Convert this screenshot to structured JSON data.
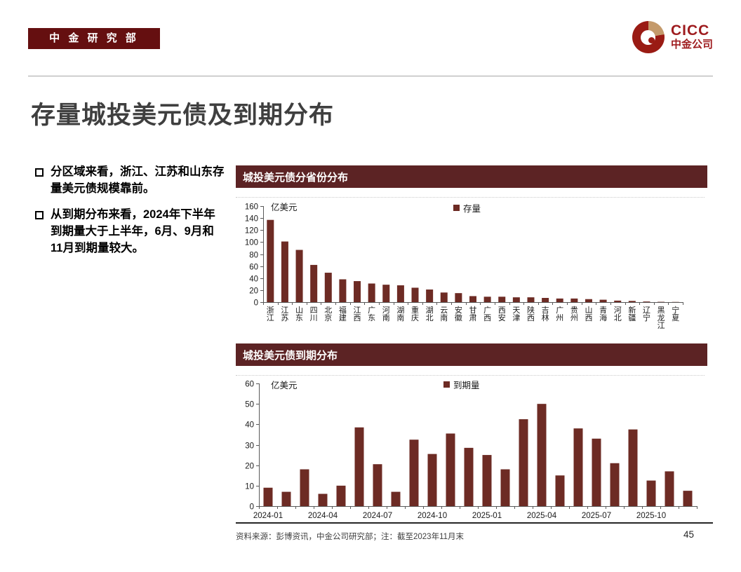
{
  "header": {
    "dept_badge": "中 金 研 究 部",
    "logo": {
      "text": "CICC",
      "subtext": "中金公司"
    }
  },
  "title": "存量城投美元债及到期分布",
  "bullets": [
    "分区域来看，浙江、江苏和山东存量美元债规模靠前。",
    "从到期分布来看，2024年下半年到期量大于上半年，6月、9月和11月到期量较大。"
  ],
  "footer": {
    "source": "资料来源：彭博资讯，中金公司研究部；注：截至2023年11月末",
    "page_number": "45"
  },
  "colors": {
    "brand_maroon_badge": "#650F10",
    "panel_header_maroon": "#5C2324",
    "bar_maroon": "#6D2B24",
    "logo_red": "#9E1B1E",
    "logo_gold": "#C49A6B",
    "title_gray": "#3F3F3F"
  },
  "chart_data": [
    {
      "type": "bar",
      "title": "城投美元债分省份分布",
      "unit_label": "亿美元",
      "legend": "存量",
      "legend_position": "top-right",
      "grid": false,
      "ylim": [
        0,
        160
      ],
      "yticks": [
        0,
        20,
        40,
        60,
        80,
        100,
        120,
        140,
        160
      ],
      "bar_color": "#6D2B24",
      "categories": [
        "浙江",
        "江苏",
        "山东",
        "四川",
        "北京",
        "福建",
        "江西",
        "广东",
        "河南",
        "湖南",
        "重庆",
        "湖北",
        "云南",
        "安徽",
        "甘肃",
        "广西",
        "西安",
        "天津",
        "陕西",
        "吉林",
        "广州",
        "贵州",
        "山西",
        "青海",
        "河北",
        "新疆",
        "辽宁",
        "黑龙江",
        "宁夏"
      ],
      "values": [
        137,
        101,
        87,
        62,
        49,
        38,
        35,
        31,
        29,
        28,
        24,
        21,
        16,
        15,
        10,
        9,
        9,
        8,
        8,
        7,
        6,
        6,
        5,
        4,
        2.5,
        2,
        1,
        0.5,
        0.3
      ]
    },
    {
      "type": "bar",
      "title": "城投美元债到期分布",
      "unit_label": "亿美元",
      "legend": "到期量",
      "legend_position": "top-right",
      "grid": false,
      "ylim": [
        0,
        60
      ],
      "yticks": [
        0,
        10,
        20,
        30,
        40,
        50,
        60
      ],
      "bar_color": "#6D2B24",
      "xtick_every": 3,
      "categories": [
        "2024-01",
        "2024-02",
        "2024-03",
        "2024-04",
        "2024-05",
        "2024-06",
        "2024-07",
        "2024-08",
        "2024-09",
        "2024-10",
        "2024-11",
        "2024-12",
        "2025-01",
        "2025-02",
        "2025-03",
        "2025-04",
        "2025-05",
        "2025-06",
        "2025-07",
        "2025-08",
        "2025-09",
        "2025-10",
        "2025-11",
        "2025-12"
      ],
      "values": [
        9,
        7,
        18,
        6,
        10,
        38.5,
        20.5,
        7,
        32.5,
        25.5,
        35.5,
        28.5,
        25,
        18,
        42.5,
        50,
        15,
        38,
        33,
        21,
        37.5,
        12.5,
        17,
        7.5
      ]
    }
  ]
}
